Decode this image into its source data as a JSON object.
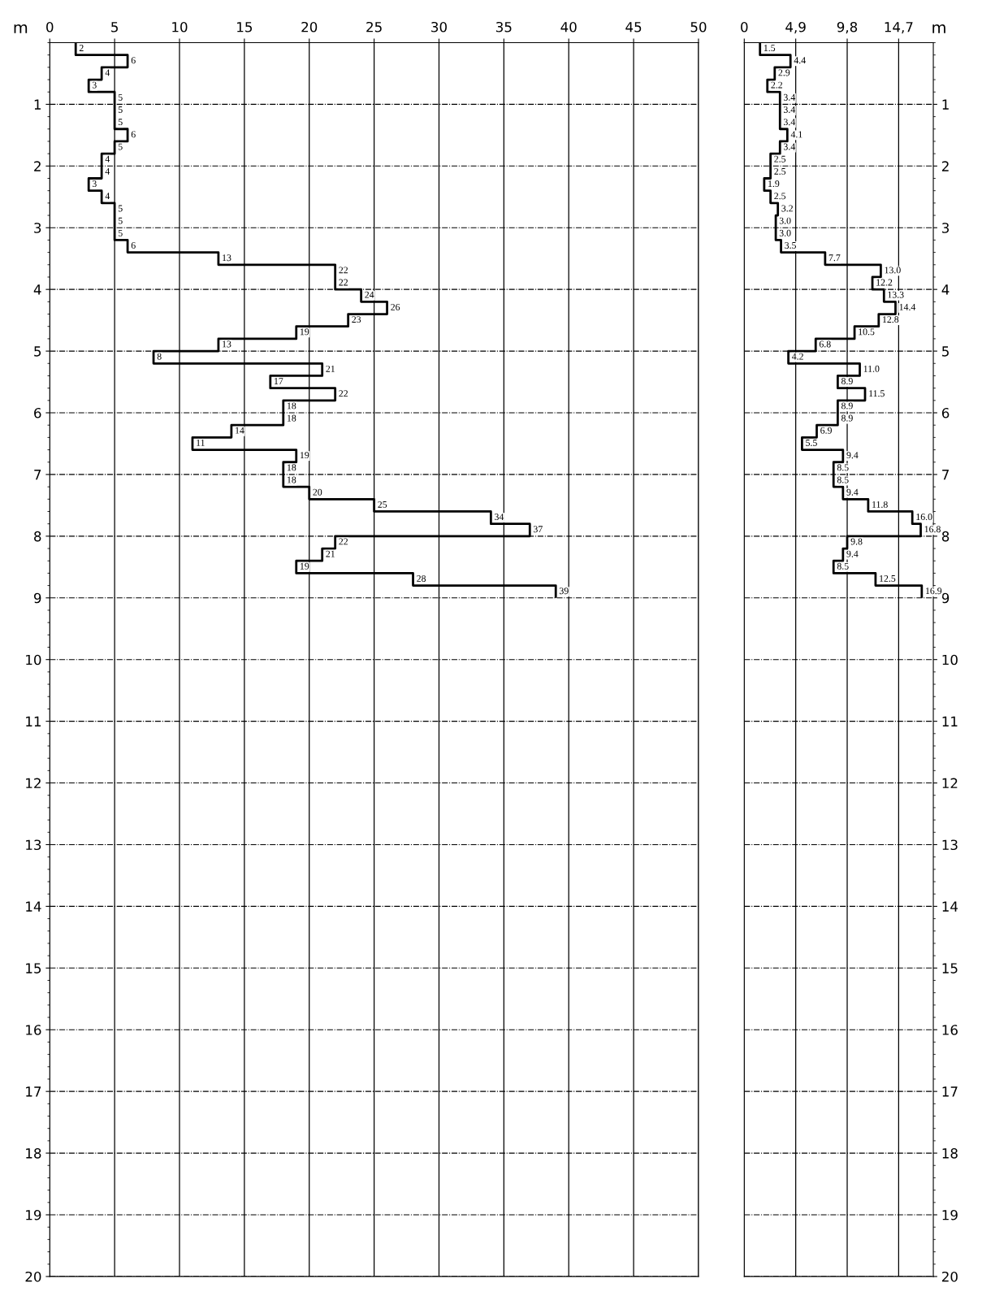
{
  "chart_data": [
    {
      "type": "histogram",
      "orientation": "horizontal",
      "color": "#000000",
      "ylabel": "m",
      "grid": true,
      "bins": [
        0,
        0.2,
        0.4,
        0.6,
        0.8,
        1.0,
        1.2,
        1.4,
        1.6,
        1.8,
        2.0,
        2.2,
        2.4,
        2.6,
        2.8,
        3.0,
        3.2,
        3.4,
        3.6,
        3.8,
        4.0,
        4.2,
        4.4,
        4.6,
        4.8,
        5.0,
        5.2,
        5.4,
        5.6,
        5.8,
        6.0,
        6.2,
        6.4,
        6.6,
        6.8,
        7.0,
        7.2,
        7.4,
        7.6,
        7.8,
        8.0,
        8.2,
        8.4,
        8.6,
        8.8,
        9.0
      ],
      "values": [
        2,
        6,
        4,
        3,
        5,
        5,
        5,
        6,
        5,
        4,
        4,
        3,
        4,
        5,
        5,
        5,
        6,
        13,
        22,
        22,
        24,
        26,
        23,
        19,
        13,
        8,
        21,
        17,
        22,
        18,
        18,
        14,
        11,
        19,
        18,
        18,
        20,
        25,
        34,
        37,
        22,
        21,
        19,
        28,
        39
      ],
      "value_labels": [
        "2",
        "6",
        "4",
        "3",
        "5",
        "5",
        "5",
        "6",
        "5",
        "4",
        "4",
        "3",
        "4",
        "5",
        "5",
        "5",
        "6",
        "13",
        "22",
        "22",
        "24",
        "26",
        "23",
        "19",
        "13",
        "8",
        "21",
        "17",
        "22",
        "18",
        "18",
        "14",
        "11",
        "19",
        "18",
        "18",
        "20",
        "25",
        "34",
        "37",
        "22",
        "21",
        "19",
        "28",
        "39"
      ],
      "xlim": [
        0,
        50
      ],
      "xticks": [
        0,
        5,
        10,
        15,
        20,
        25,
        30,
        35,
        40,
        45,
        50
      ],
      "ylim": [
        20,
        0
      ],
      "yticks": [
        1,
        2,
        3,
        4,
        5,
        6,
        7,
        8,
        9,
        10,
        11,
        12,
        13,
        14,
        15,
        16,
        17,
        18,
        19,
        20
      ]
    },
    {
      "type": "histogram",
      "orientation": "horizontal",
      "color": "#000000",
      "ylabel": "m",
      "grid": true,
      "bins": [
        0,
        0.2,
        0.4,
        0.6,
        0.8,
        1.0,
        1.2,
        1.4,
        1.6,
        1.8,
        2.0,
        2.2,
        2.4,
        2.6,
        2.8,
        3.0,
        3.2,
        3.4,
        3.6,
        3.8,
        4.0,
        4.2,
        4.4,
        4.6,
        4.8,
        5.0,
        5.2,
        5.4,
        5.6,
        5.8,
        6.0,
        6.2,
        6.4,
        6.6,
        6.8,
        7.0,
        7.2,
        7.4,
        7.6,
        7.8,
        8.0,
        8.2,
        8.4,
        8.6,
        8.8,
        9.0
      ],
      "values": [
        1.5,
        4.4,
        2.9,
        2.2,
        3.4,
        3.4,
        3.4,
        4.1,
        3.4,
        2.5,
        2.5,
        1.9,
        2.5,
        3.2,
        3.0,
        3.0,
        3.5,
        7.7,
        13.0,
        12.2,
        13.3,
        14.4,
        12.8,
        10.5,
        6.8,
        4.2,
        11.0,
        8.9,
        11.5,
        8.9,
        8.9,
        6.9,
        5.5,
        9.4,
        8.5,
        8.5,
        9.4,
        11.8,
        16.0,
        16.8,
        9.8,
        9.4,
        8.5,
        12.5,
        16.9
      ],
      "value_labels": [
        "1.5",
        "4.4",
        "2.9",
        "2.2",
        "3.4",
        "3.4",
        "3.4",
        "4.1",
        "3.4",
        "2.5",
        "2.5",
        "1.9",
        "2.5",
        "3.2",
        "3.0",
        "3.0",
        "3.5",
        "7.7",
        "13.0",
        "12.2",
        "13.3",
        "14.4",
        "12.8",
        "10.5",
        "6.8",
        "4.2",
        "11.0",
        "8.9",
        "11.5",
        "8.9",
        "8.9",
        "6.9",
        "5.5",
        "9.4",
        "8.5",
        "8.5",
        "9.4",
        "11.8",
        "16.0",
        "16.8",
        "9.8",
        "9.4",
        "8.5",
        "12.5",
        "16.9"
      ],
      "xlim": [
        0,
        18
      ],
      "xticks": [
        0,
        {
          "value": 4.9,
          "label": "4,9"
        },
        {
          "value": 9.8,
          "label": "9,8"
        },
        {
          "value": 14.7,
          "label": "14,7"
        }
      ],
      "ylim": [
        20,
        0
      ],
      "yticks": [
        1,
        2,
        3,
        4,
        5,
        6,
        7,
        8,
        9,
        10,
        11,
        12,
        13,
        14,
        15,
        16,
        17,
        18,
        19,
        20
      ]
    }
  ]
}
